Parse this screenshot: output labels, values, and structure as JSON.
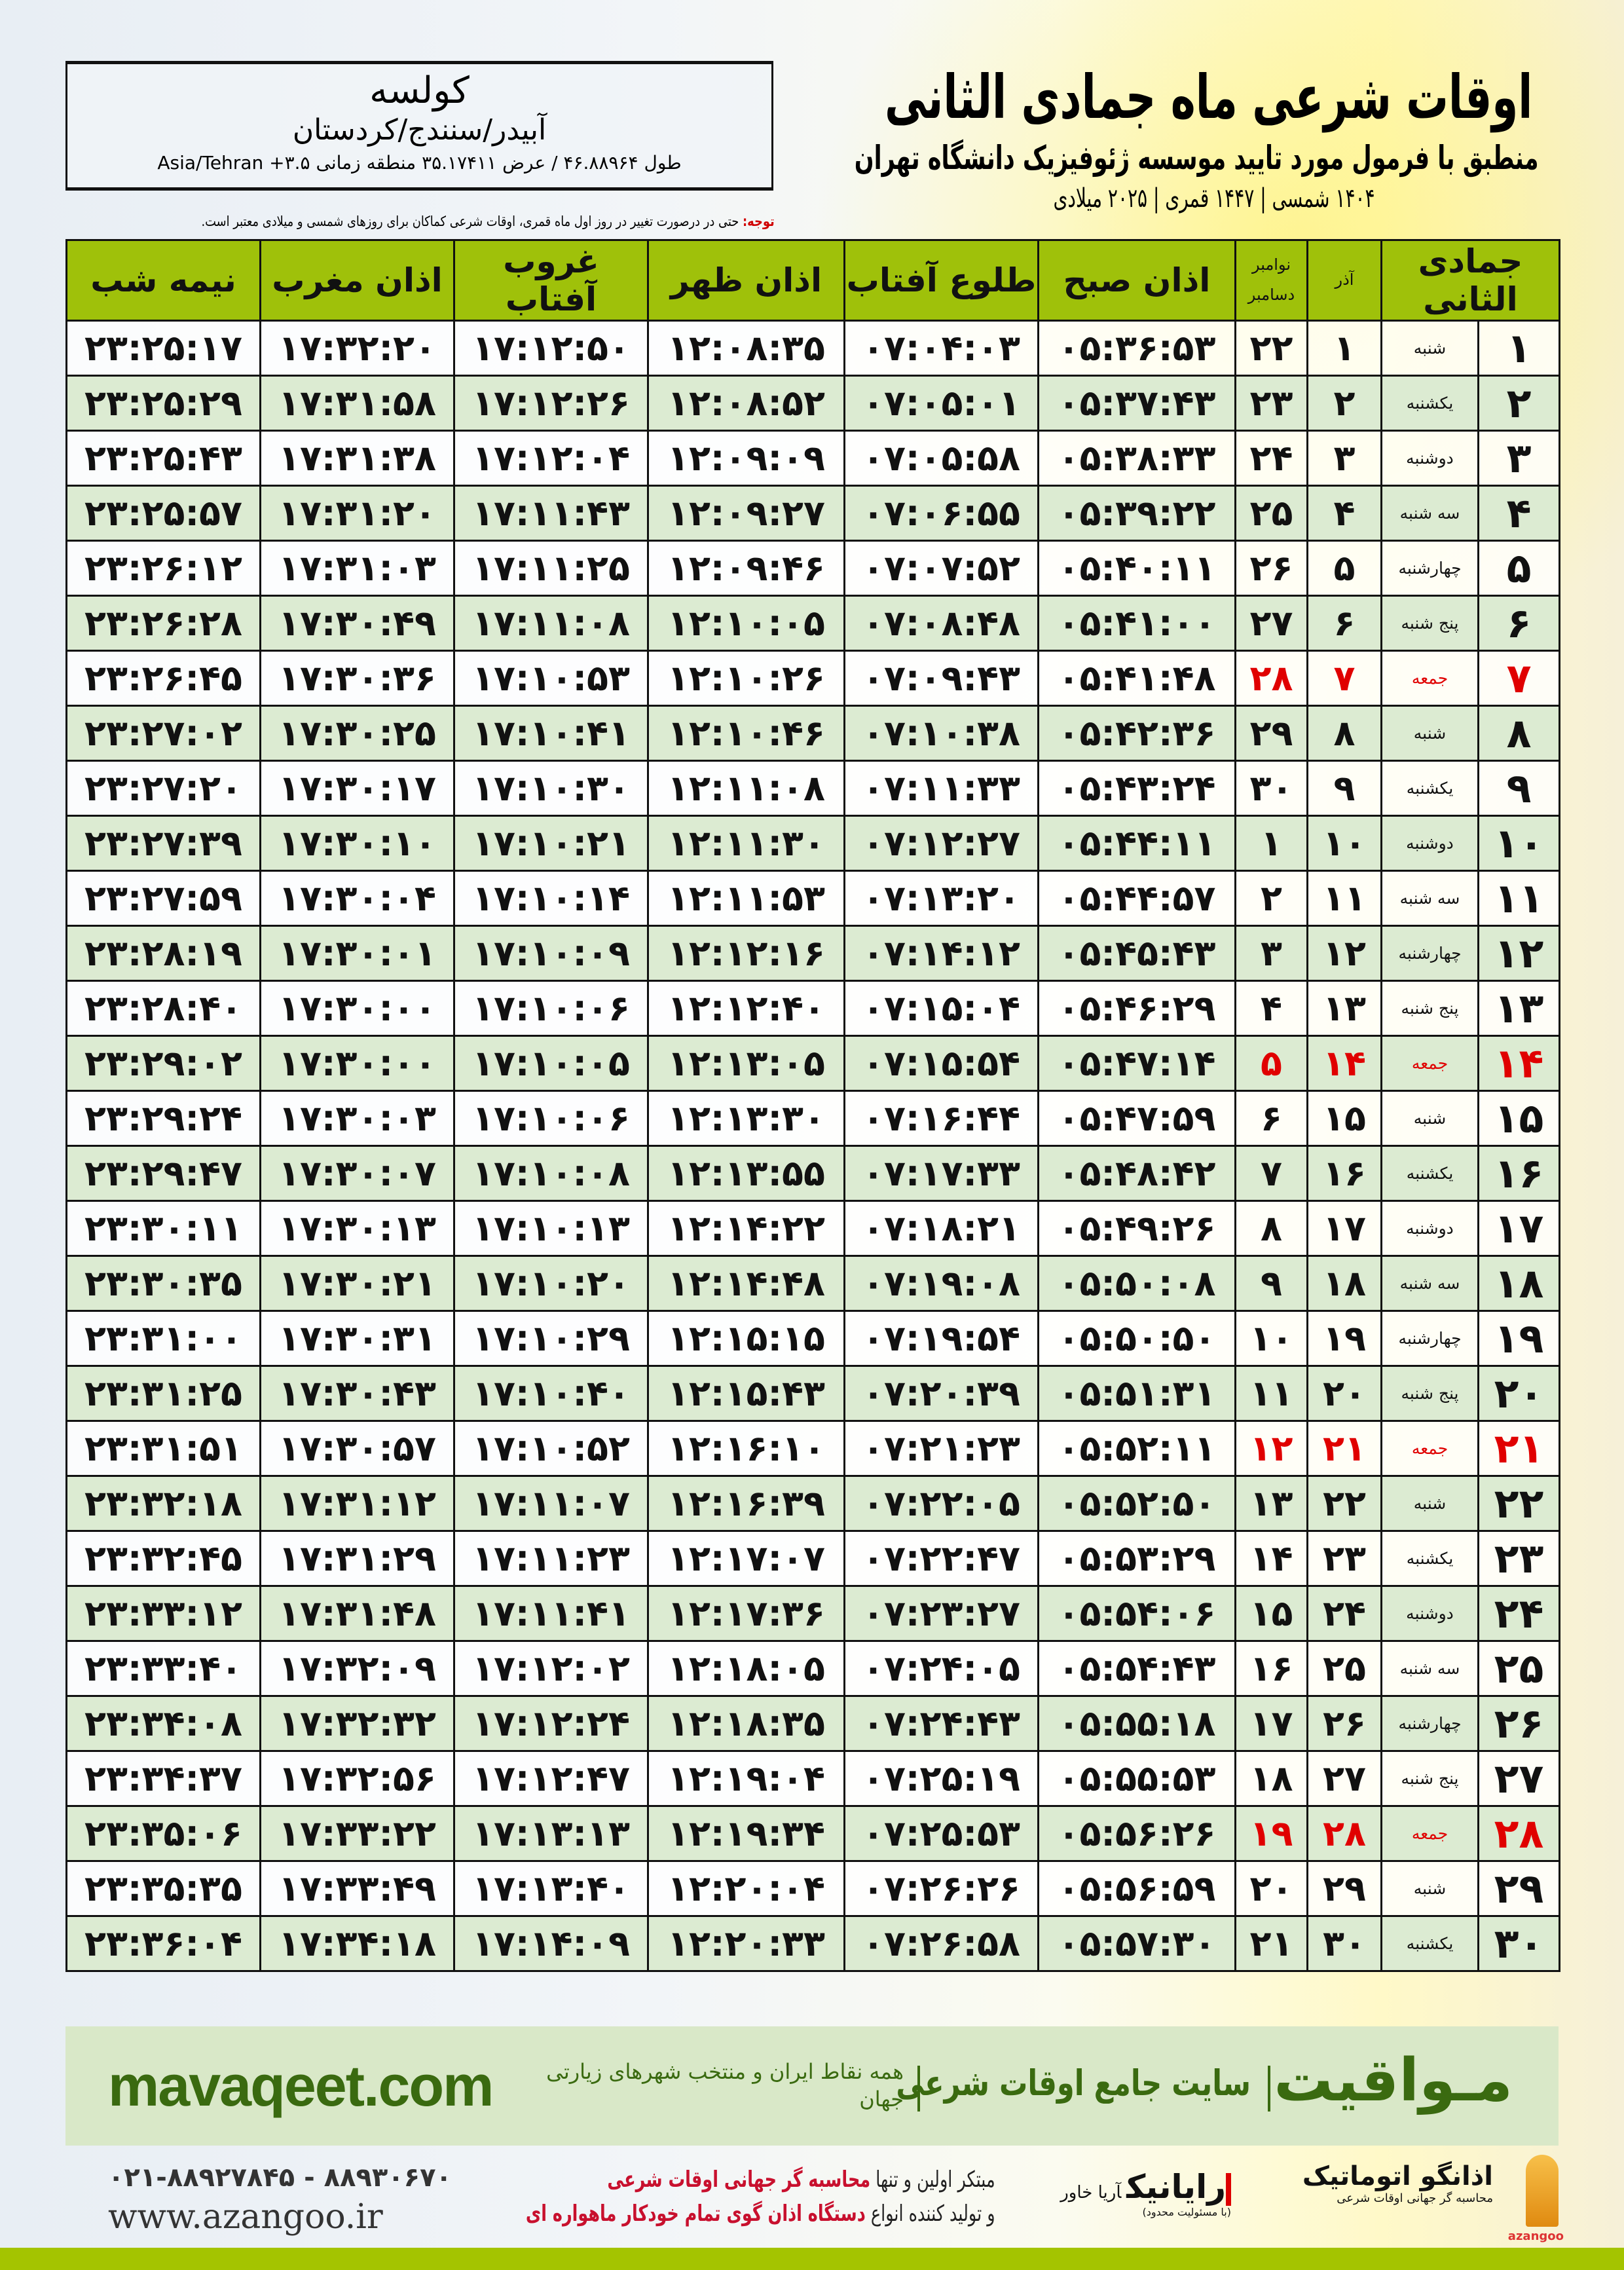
{
  "header": {
    "title": "اوقات شرعی ماه جمادی الثانی",
    "subtitle": "منطبق با فرمول مورد تایید موسسه ژئوفیزیک دانشگاه تهران",
    "dates": "۱۴۰۴ شمسی | ۱۴۴۷ قمری | ۲۰۲۵ میلادی"
  },
  "location": {
    "city": "کولسه",
    "region": "آبیدر/سنندج/کردستان",
    "coords": "طول ۴۶.۸۸۹۶۴ / عرض ۳۵.۱۷۴۱۱ منطقه زمانی ۳.۵+ Asia/Tehran"
  },
  "note": {
    "label": "توجه:",
    "text": " حتی در درصورت تغییر در روز اول ماه قمری، اوقات شرعی کماکان برای روزهای شمسی و میلادی معتبر است."
  },
  "colors": {
    "header_bg": "#9fc10a",
    "row_alt": "#dcebd2",
    "friday": "#e00000",
    "brand_green": "#3a6a10"
  },
  "table": {
    "headers": {
      "hijri": "جمادی الثانی",
      "azar": "آذر",
      "miladi_top": "نوامبر",
      "miladi_bottom": "دسامبر",
      "sobh": "اذان صبح",
      "tolu": "طلوع آفتاب",
      "zohr": "اذان ظهر",
      "ghorub": "غروب آفتاب",
      "maghreb": "اذان مغرب",
      "nimeshab": "نیمه شب"
    },
    "friday_name": "جمعه",
    "rows": [
      [
        "۱",
        "شنبه",
        "۱",
        "۲۲",
        "۰۵:۳۶:۵۳",
        "۰۷:۰۴:۰۳",
        "۱۲:۰۸:۳۵",
        "۱۷:۱۲:۵۰",
        "۱۷:۳۲:۲۰",
        "۲۳:۲۵:۱۷"
      ],
      [
        "۲",
        "یکشنبه",
        "۲",
        "۲۳",
        "۰۵:۳۷:۴۳",
        "۰۷:۰۵:۰۱",
        "۱۲:۰۸:۵۲",
        "۱۷:۱۲:۲۶",
        "۱۷:۳۱:۵۸",
        "۲۳:۲۵:۲۹"
      ],
      [
        "۳",
        "دوشنبه",
        "۳",
        "۲۴",
        "۰۵:۳۸:۳۳",
        "۰۷:۰۵:۵۸",
        "۱۲:۰۹:۰۹",
        "۱۷:۱۲:۰۴",
        "۱۷:۳۱:۳۸",
        "۲۳:۲۵:۴۳"
      ],
      [
        "۴",
        "سه شنبه",
        "۴",
        "۲۵",
        "۰۵:۳۹:۲۲",
        "۰۷:۰۶:۵۵",
        "۱۲:۰۹:۲۷",
        "۱۷:۱۱:۴۳",
        "۱۷:۳۱:۲۰",
        "۲۳:۲۵:۵۷"
      ],
      [
        "۵",
        "چهارشنبه",
        "۵",
        "۲۶",
        "۰۵:۴۰:۱۱",
        "۰۷:۰۷:۵۲",
        "۱۲:۰۹:۴۶",
        "۱۷:۱۱:۲۵",
        "۱۷:۳۱:۰۳",
        "۲۳:۲۶:۱۲"
      ],
      [
        "۶",
        "پنج شنبه",
        "۶",
        "۲۷",
        "۰۵:۴۱:۰۰",
        "۰۷:۰۸:۴۸",
        "۱۲:۱۰:۰۵",
        "۱۷:۱۱:۰۸",
        "۱۷:۳۰:۴۹",
        "۲۳:۲۶:۲۸"
      ],
      [
        "۷",
        "جمعه",
        "۷",
        "۲۸",
        "۰۵:۴۱:۴۸",
        "۰۷:۰۹:۴۳",
        "۱۲:۱۰:۲۶",
        "۱۷:۱۰:۵۳",
        "۱۷:۳۰:۳۶",
        "۲۳:۲۶:۴۵"
      ],
      [
        "۸",
        "شنبه",
        "۸",
        "۲۹",
        "۰۵:۴۲:۳۶",
        "۰۷:۱۰:۳۸",
        "۱۲:۱۰:۴۶",
        "۱۷:۱۰:۴۱",
        "۱۷:۳۰:۲۵",
        "۲۳:۲۷:۰۲"
      ],
      [
        "۹",
        "یکشنبه",
        "۹",
        "۳۰",
        "۰۵:۴۳:۲۴",
        "۰۷:۱۱:۳۳",
        "۱۲:۱۱:۰۸",
        "۱۷:۱۰:۳۰",
        "۱۷:۳۰:۱۷",
        "۲۳:۲۷:۲۰"
      ],
      [
        "۱۰",
        "دوشنبه",
        "۱۰",
        "۱",
        "۰۵:۴۴:۱۱",
        "۰۷:۱۲:۲۷",
        "۱۲:۱۱:۳۰",
        "۱۷:۱۰:۲۱",
        "۱۷:۳۰:۱۰",
        "۲۳:۲۷:۳۹"
      ],
      [
        "۱۱",
        "سه شنبه",
        "۱۱",
        "۲",
        "۰۵:۴۴:۵۷",
        "۰۷:۱۳:۲۰",
        "۱۲:۱۱:۵۳",
        "۱۷:۱۰:۱۴",
        "۱۷:۳۰:۰۴",
        "۲۳:۲۷:۵۹"
      ],
      [
        "۱۲",
        "چهارشنبه",
        "۱۲",
        "۳",
        "۰۵:۴۵:۴۳",
        "۰۷:۱۴:۱۲",
        "۱۲:۱۲:۱۶",
        "۱۷:۱۰:۰۹",
        "۱۷:۳۰:۰۱",
        "۲۳:۲۸:۱۹"
      ],
      [
        "۱۳",
        "پنج شنبه",
        "۱۳",
        "۴",
        "۰۵:۴۶:۲۹",
        "۰۷:۱۵:۰۴",
        "۱۲:۱۲:۴۰",
        "۱۷:۱۰:۰۶",
        "۱۷:۳۰:۰۰",
        "۲۳:۲۸:۴۰"
      ],
      [
        "۱۴",
        "جمعه",
        "۱۴",
        "۵",
        "۰۵:۴۷:۱۴",
        "۰۷:۱۵:۵۴",
        "۱۲:۱۳:۰۵",
        "۱۷:۱۰:۰۵",
        "۱۷:۳۰:۰۰",
        "۲۳:۲۹:۰۲"
      ],
      [
        "۱۵",
        "شنبه",
        "۱۵",
        "۶",
        "۰۵:۴۷:۵۹",
        "۰۷:۱۶:۴۴",
        "۱۲:۱۳:۳۰",
        "۱۷:۱۰:۰۶",
        "۱۷:۳۰:۰۳",
        "۲۳:۲۹:۲۴"
      ],
      [
        "۱۶",
        "یکشنبه",
        "۱۶",
        "۷",
        "۰۵:۴۸:۴۲",
        "۰۷:۱۷:۳۳",
        "۱۲:۱۳:۵۵",
        "۱۷:۱۰:۰۸",
        "۱۷:۳۰:۰۷",
        "۲۳:۲۹:۴۷"
      ],
      [
        "۱۷",
        "دوشنبه",
        "۱۷",
        "۸",
        "۰۵:۴۹:۲۶",
        "۰۷:۱۸:۲۱",
        "۱۲:۱۴:۲۲",
        "۱۷:۱۰:۱۳",
        "۱۷:۳۰:۱۳",
        "۲۳:۳۰:۱۱"
      ],
      [
        "۱۸",
        "سه شنبه",
        "۱۸",
        "۹",
        "۰۵:۵۰:۰۸",
        "۰۷:۱۹:۰۸",
        "۱۲:۱۴:۴۸",
        "۱۷:۱۰:۲۰",
        "۱۷:۳۰:۲۱",
        "۲۳:۳۰:۳۵"
      ],
      [
        "۱۹",
        "چهارشنبه",
        "۱۹",
        "۱۰",
        "۰۵:۵۰:۵۰",
        "۰۷:۱۹:۵۴",
        "۱۲:۱۵:۱۵",
        "۱۷:۱۰:۲۹",
        "۱۷:۳۰:۳۱",
        "۲۳:۳۱:۰۰"
      ],
      [
        "۲۰",
        "پنج شنبه",
        "۲۰",
        "۱۱",
        "۰۵:۵۱:۳۱",
        "۰۷:۲۰:۳۹",
        "۱۲:۱۵:۴۳",
        "۱۷:۱۰:۴۰",
        "۱۷:۳۰:۴۳",
        "۲۳:۳۱:۲۵"
      ],
      [
        "۲۱",
        "جمعه",
        "۲۱",
        "۱۲",
        "۰۵:۵۲:۱۱",
        "۰۷:۲۱:۲۳",
        "۱۲:۱۶:۱۰",
        "۱۷:۱۰:۵۲",
        "۱۷:۳۰:۵۷",
        "۲۳:۳۱:۵۱"
      ],
      [
        "۲۲",
        "شنبه",
        "۲۲",
        "۱۳",
        "۰۵:۵۲:۵۰",
        "۰۷:۲۲:۰۵",
        "۱۲:۱۶:۳۹",
        "۱۷:۱۱:۰۷",
        "۱۷:۳۱:۱۲",
        "۲۳:۳۲:۱۸"
      ],
      [
        "۲۳",
        "یکشنبه",
        "۲۳",
        "۱۴",
        "۰۵:۵۳:۲۹",
        "۰۷:۲۲:۴۷",
        "۱۲:۱۷:۰۷",
        "۱۷:۱۱:۲۳",
        "۱۷:۳۱:۲۹",
        "۲۳:۳۲:۴۵"
      ],
      [
        "۲۴",
        "دوشنبه",
        "۲۴",
        "۱۵",
        "۰۵:۵۴:۰۶",
        "۰۷:۲۳:۲۷",
        "۱۲:۱۷:۳۶",
        "۱۷:۱۱:۴۱",
        "۱۷:۳۱:۴۸",
        "۲۳:۳۳:۱۲"
      ],
      [
        "۲۵",
        "سه شنبه",
        "۲۵",
        "۱۶",
        "۰۵:۵۴:۴۳",
        "۰۷:۲۴:۰۵",
        "۱۲:۱۸:۰۵",
        "۱۷:۱۲:۰۲",
        "۱۷:۳۲:۰۹",
        "۲۳:۳۳:۴۰"
      ],
      [
        "۲۶",
        "چهارشنبه",
        "۲۶",
        "۱۷",
        "۰۵:۵۵:۱۸",
        "۰۷:۲۴:۴۳",
        "۱۲:۱۸:۳۵",
        "۱۷:۱۲:۲۴",
        "۱۷:۳۲:۳۲",
        "۲۳:۳۴:۰۸"
      ],
      [
        "۲۷",
        "پنج شنبه",
        "۲۷",
        "۱۸",
        "۰۵:۵۵:۵۳",
        "۰۷:۲۵:۱۹",
        "۱۲:۱۹:۰۴",
        "۱۷:۱۲:۴۷",
        "۱۷:۳۲:۵۶",
        "۲۳:۳۴:۳۷"
      ],
      [
        "۲۸",
        "جمعه",
        "۲۸",
        "۱۹",
        "۰۵:۵۶:۲۶",
        "۰۷:۲۵:۵۳",
        "۱۲:۱۹:۳۴",
        "۱۷:۱۳:۱۳",
        "۱۷:۳۳:۲۲",
        "۲۳:۳۵:۰۶"
      ],
      [
        "۲۹",
        "شنبه",
        "۲۹",
        "۲۰",
        "۰۵:۵۶:۵۹",
        "۰۷:۲۶:۲۶",
        "۱۲:۲۰:۰۴",
        "۱۷:۱۳:۴۰",
        "۱۷:۳۳:۴۹",
        "۲۳:۳۵:۳۵"
      ],
      [
        "۳۰",
        "یکشنبه",
        "۳۰",
        "۲۱",
        "۰۵:۵۷:۳۰",
        "۰۷:۲۶:۵۸",
        "۱۲:۲۰:۳۳",
        "۱۷:۱۴:۰۹",
        "۱۷:۳۴:۱۸",
        "۲۳:۳۶:۰۴"
      ]
    ]
  },
  "banner": {
    "brand": "مـواقیت",
    "tagline": "سایت جامع اوقات شرعی",
    "tagline2": "همه نقاط ایران و منتخب شهرهای زیارتی جهان",
    "site": "mavaqeet.com"
  },
  "footer": {
    "phone": "۰۲۱-۸۸۹۲۷۸۴۵ - ۸۸۹۳۰۶۷۰",
    "website": "www.azangoo.ir",
    "ad_line1_a": "مبتکر اولین و تنها ",
    "ad_line1_b": "محاسبه گر جهانی اوقات شرعی",
    "ad_line2_a": "و تولید کننده انواع ",
    "ad_line2_b": "دستگاه اذان گوی تمام خودکار ماهواره ای",
    "logo_azangoo": "اذانگو اتوماتیک",
    "logo_azangoo_sub": "محاسبه گر جهانی اوقات شرعی",
    "logo_azangoo_en": "azangoo",
    "logo_rayanik": "رایانیک",
    "logo_rayanik_sub": "آریا خاور",
    "logo_rayanik_note": "(با مسئولیت محدود)"
  }
}
